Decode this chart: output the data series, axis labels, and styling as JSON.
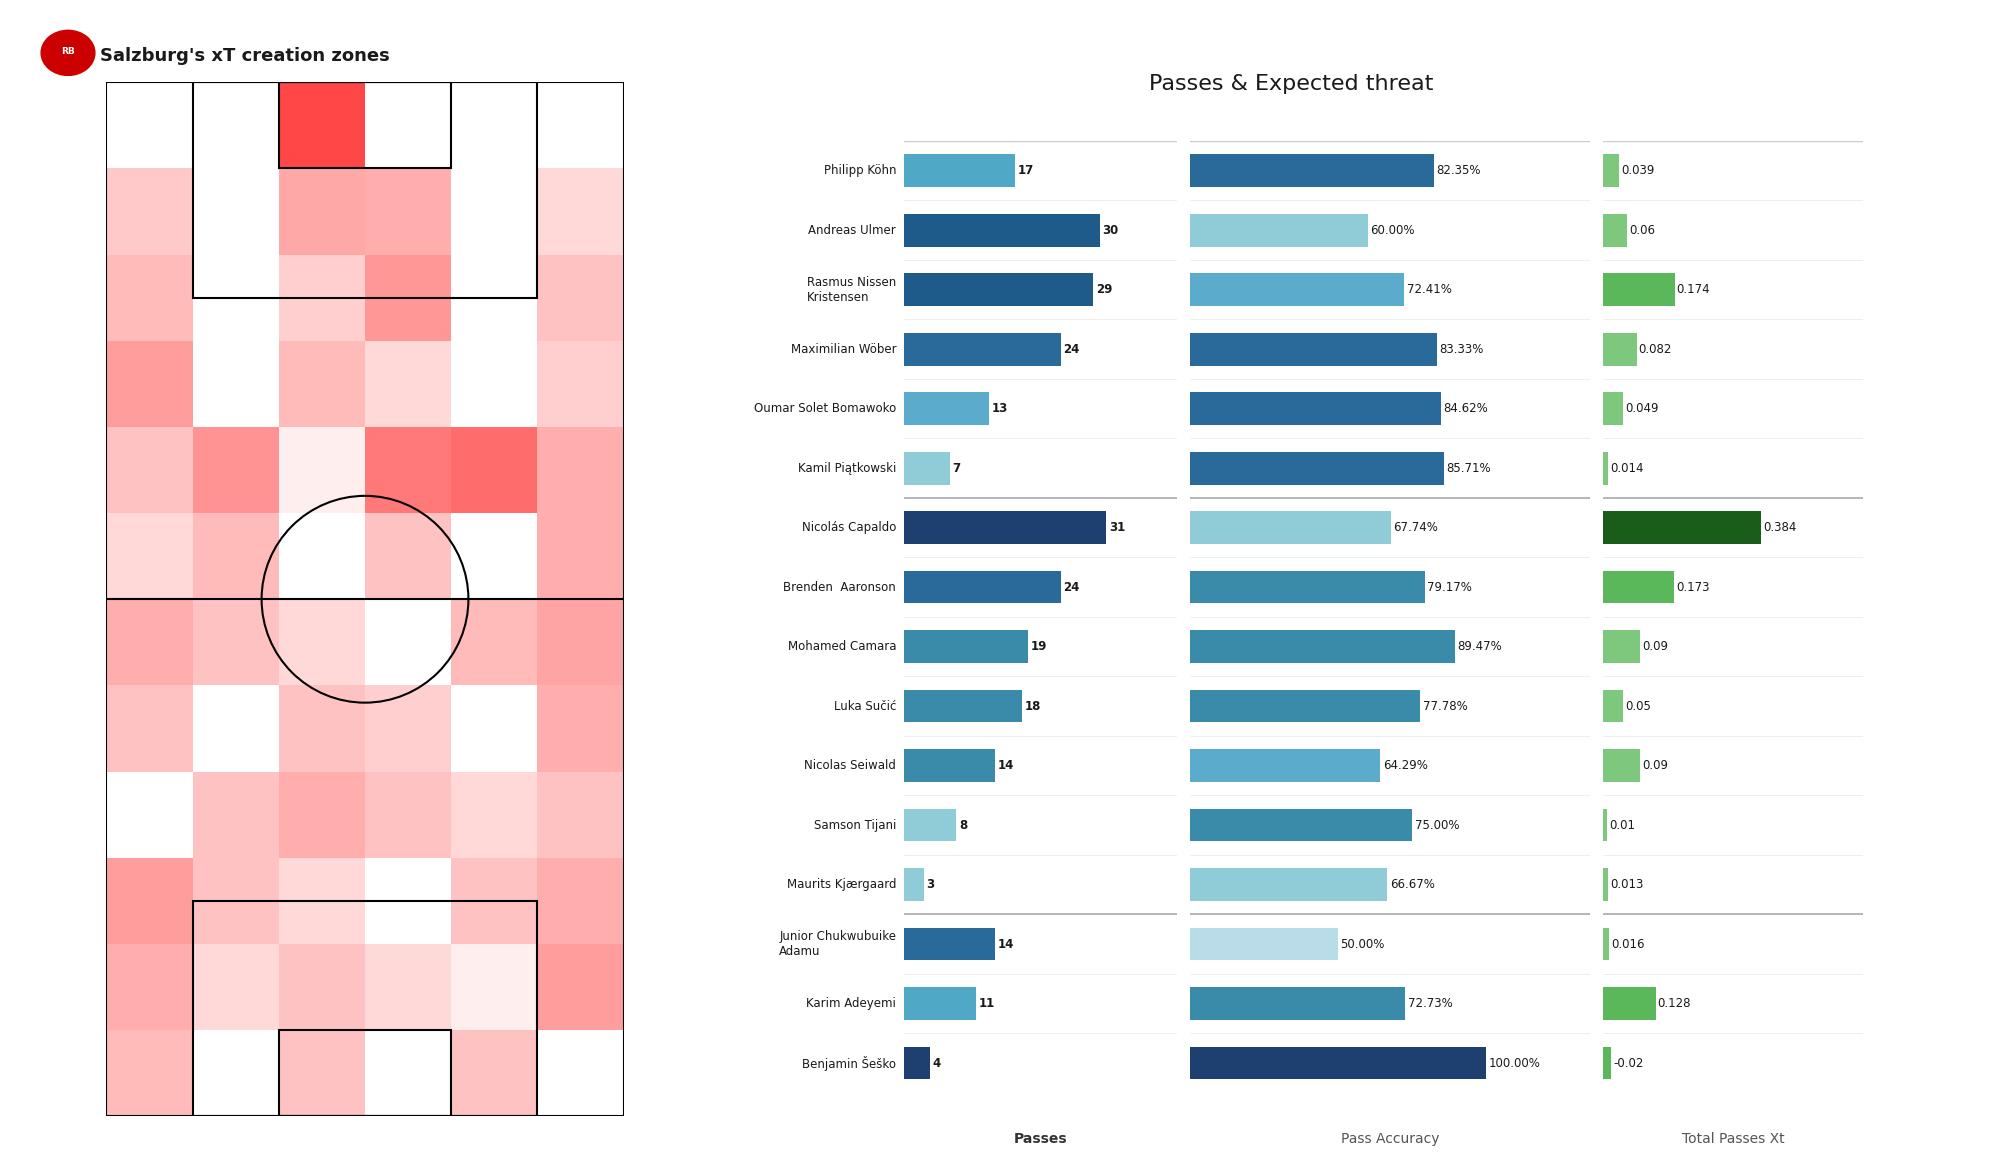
{
  "title_left": "Salzburg's xT creation zones",
  "title_right": "Passes & Expected threat",
  "players": [
    {
      "name": "Philipp Köhn",
      "passes": 17,
      "pass_acc": 82.35,
      "xt": 0.039,
      "group": "def"
    },
    {
      "name": "Andreas Ulmer",
      "passes": 30,
      "pass_acc": 60.0,
      "xt": 0.06,
      "group": "def"
    },
    {
      "name": "Rasmus Nissen\nKristensen",
      "passes": 29,
      "pass_acc": 72.41,
      "xt": 0.174,
      "group": "def"
    },
    {
      "name": "Maximilian Wöber",
      "passes": 24,
      "pass_acc": 83.33,
      "xt": 0.082,
      "group": "def"
    },
    {
      "name": "Oumar Solet Bomawoko",
      "passes": 13,
      "pass_acc": 84.62,
      "xt": 0.049,
      "group": "def"
    },
    {
      "name": "Kamil Piątkowski",
      "passes": 7,
      "pass_acc": 85.71,
      "xt": 0.014,
      "group": "def"
    },
    {
      "name": "Nicolás Capaldo",
      "passes": 31,
      "pass_acc": 67.74,
      "xt": 0.384,
      "group": "mid"
    },
    {
      "name": "Brenden  Aaronson",
      "passes": 24,
      "pass_acc": 79.17,
      "xt": 0.173,
      "group": "mid"
    },
    {
      "name": "Mohamed Camara",
      "passes": 19,
      "pass_acc": 89.47,
      "xt": 0.09,
      "group": "mid"
    },
    {
      "name": "Luka Sučić",
      "passes": 18,
      "pass_acc": 77.78,
      "xt": 0.05,
      "group": "mid"
    },
    {
      "name": "Nicolas Seiwald",
      "passes": 14,
      "pass_acc": 64.29,
      "xt": 0.09,
      "group": "mid"
    },
    {
      "name": "Samson Tijani",
      "passes": 8,
      "pass_acc": 75.0,
      "xt": 0.01,
      "group": "mid"
    },
    {
      "name": "Maurits Kjærgaard",
      "passes": 3,
      "pass_acc": 66.67,
      "xt": 0.013,
      "group": "mid"
    },
    {
      "name": "Junior Chukwubuike\nAdamu",
      "passes": 14,
      "pass_acc": 50.0,
      "xt": 0.016,
      "group": "fwd"
    },
    {
      "name": "Karim Adeyemi",
      "passes": 11,
      "pass_acc": 72.73,
      "xt": 0.128,
      "group": "fwd"
    },
    {
      "name": "Benjamin Šeško",
      "passes": 4,
      "pass_acc": 100.0,
      "xt": -0.02,
      "group": "fwd"
    }
  ],
  "pass_colors": [
    "#4fa8c5",
    "#1e5a8a",
    "#1e5a8a",
    "#2a6a9a",
    "#5aabcc",
    "#90ccd8",
    "#1e4070",
    "#2a6a9a",
    "#3a8aaa",
    "#3a8aaa",
    "#3a8aaa",
    "#90ccd8",
    "#90ccd8",
    "#2a6a9a",
    "#4fa8c5",
    "#1e4070"
  ],
  "acc_colors": [
    "#2a6a9a",
    "#90ccd8",
    "#5aabcc",
    "#2a6a9a",
    "#2a6a9a",
    "#2a6a9a",
    "#90ccd8",
    "#3a8aaa",
    "#3a8aaa",
    "#3a8aaa",
    "#5aabcc",
    "#3a8aaa",
    "#90ccd8",
    "#b8dde8",
    "#3a8aaa",
    "#1e4070"
  ],
  "xt_colors": [
    "#7ec87e",
    "#7ec87e",
    "#5ab85a",
    "#7ec87e",
    "#7ec87e",
    "#7ec87e",
    "#1a5c1a",
    "#5ab85a",
    "#7ec87e",
    "#7ec87e",
    "#7ec87e",
    "#7ec87e",
    "#7ec87e",
    "#7ec87e",
    "#5ab85a",
    "#5ab85a"
  ],
  "bg_color": "#ffffff",
  "separator_line_color": "#cccccc",
  "heatmap": [
    [
      0.0,
      0.0,
      0.85,
      0.0,
      0.0,
      0.0
    ],
    [
      0.25,
      0.0,
      0.4,
      0.38,
      0.0,
      0.18
    ],
    [
      0.32,
      0.0,
      0.22,
      0.48,
      0.0,
      0.28
    ],
    [
      0.45,
      0.0,
      0.32,
      0.18,
      0.0,
      0.22
    ],
    [
      0.28,
      0.5,
      0.08,
      0.62,
      0.68,
      0.38
    ],
    [
      0.18,
      0.32,
      0.0,
      0.28,
      0.0,
      0.38
    ],
    [
      0.38,
      0.28,
      0.18,
      0.0,
      0.32,
      0.42
    ],
    [
      0.28,
      0.0,
      0.28,
      0.22,
      0.0,
      0.38
    ],
    [
      0.0,
      0.28,
      0.38,
      0.28,
      0.18,
      0.28
    ],
    [
      0.45,
      0.28,
      0.18,
      0.0,
      0.28,
      0.38
    ],
    [
      0.38,
      0.18,
      0.28,
      0.18,
      0.08,
      0.45
    ],
    [
      0.32,
      0.0,
      0.28,
      0.0,
      0.28,
      0.0
    ]
  ]
}
